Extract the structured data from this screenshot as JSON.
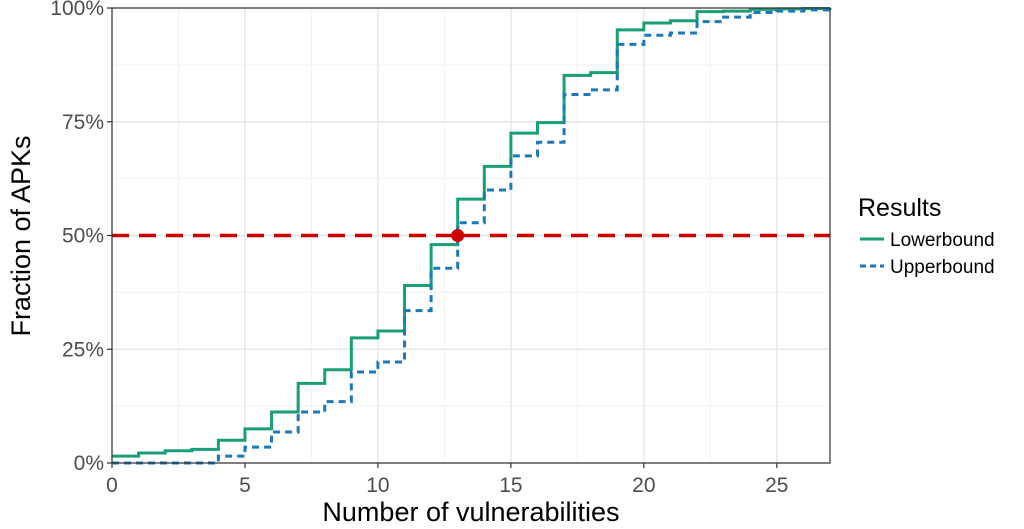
{
  "chart_data": {
    "type": "line",
    "step": true,
    "xlabel": "Number of vulnerabilities",
    "ylabel": "Fraction of APKs",
    "xlim": [
      0,
      27
    ],
    "ylim": [
      0,
      1
    ],
    "x_ticks": [
      0,
      5,
      10,
      15,
      20,
      25
    ],
    "x_tick_labels": [
      "0",
      "5",
      "10",
      "15",
      "20",
      "25"
    ],
    "y_ticks": [
      0,
      0.25,
      0.5,
      0.75,
      1.0
    ],
    "y_tick_labels": [
      "0%",
      "25%",
      "50%",
      "75%",
      "100%"
    ],
    "grid": true,
    "legend": {
      "title": "Results",
      "position": "right",
      "entries": [
        "Lowerbound",
        "Upperbound"
      ]
    },
    "series": [
      {
        "name": "Lowerbound",
        "color": "#1a9e77",
        "line_style": "solid",
        "x": [
          0,
          1,
          2,
          3,
          4,
          5,
          6,
          7,
          8,
          9,
          10,
          11,
          12,
          13,
          14,
          15,
          16,
          17,
          18,
          19,
          20,
          21,
          22,
          23,
          24,
          25,
          26,
          27
        ],
        "y": [
          0.015,
          0.022,
          0.027,
          0.03,
          0.05,
          0.075,
          0.112,
          0.175,
          0.205,
          0.275,
          0.29,
          0.39,
          0.48,
          0.58,
          0.652,
          0.725,
          0.748,
          0.852,
          0.858,
          0.952,
          0.967,
          0.972,
          0.992,
          0.993,
          0.997,
          0.998,
          0.999,
          1.0
        ]
      },
      {
        "name": "Upperbound",
        "color": "#1f78b4",
        "line_style": "dashed",
        "x": [
          0,
          1,
          2,
          3,
          4,
          5,
          6,
          7,
          8,
          9,
          10,
          11,
          12,
          13,
          14,
          15,
          16,
          17,
          18,
          19,
          20,
          21,
          22,
          23,
          24,
          25,
          26,
          27
        ],
        "y": [
          0.0,
          0.0,
          0.0,
          0.0,
          0.015,
          0.035,
          0.068,
          0.112,
          0.135,
          0.2,
          0.222,
          0.335,
          0.428,
          0.528,
          0.6,
          0.675,
          0.705,
          0.81,
          0.82,
          0.92,
          0.94,
          0.945,
          0.97,
          0.98,
          0.99,
          0.993,
          0.996,
          1.0
        ]
      }
    ],
    "reference_line": {
      "y": 0.5,
      "color": "#cc0000",
      "line_style": "dashed"
    },
    "highlight_point": {
      "x": 13,
      "y": 0.5,
      "color": "#cc0000"
    }
  }
}
